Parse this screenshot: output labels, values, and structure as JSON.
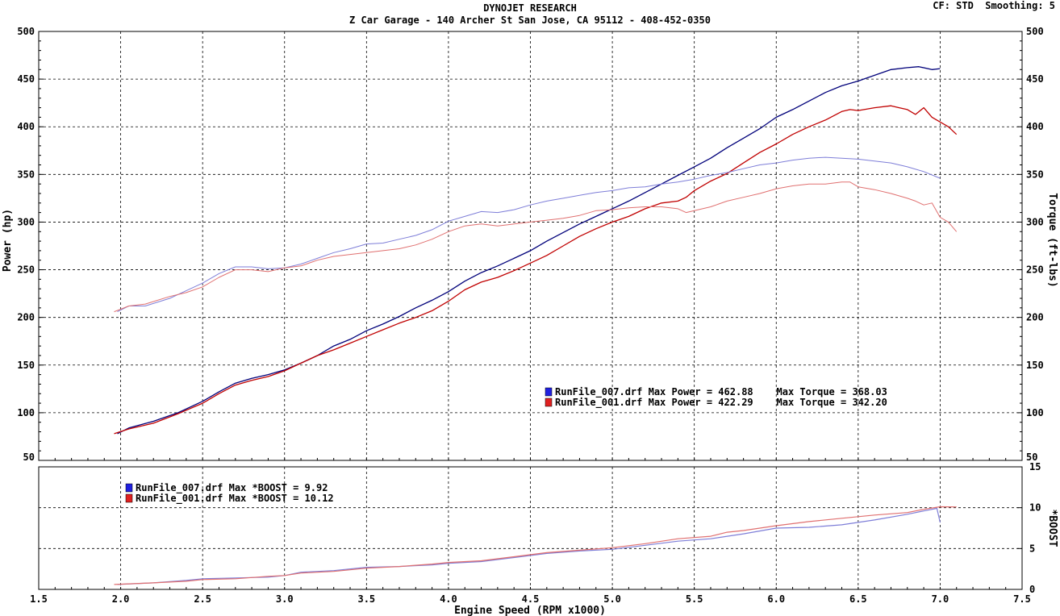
{
  "header": {
    "title": "DYNOJET RESEARCH",
    "subtitle": "Z Car Garage - 140 Archer St San Jose, CA 95112 - 408-452-0350",
    "settings": "CF: STD  Smoothing: 5"
  },
  "chart_data": [
    {
      "type": "line",
      "name": "power-torque-panel",
      "xlabel": "",
      "ylabel": "Power (hp)",
      "y2label": "Torque (ft-lbs)",
      "xlim": [
        1.5,
        7.5
      ],
      "ylim": [
        50,
        500
      ],
      "y2lim": [
        50,
        500
      ],
      "grid": true,
      "yticks": [
        "50",
        "100",
        "150",
        "200",
        "250",
        "300",
        "350",
        "400",
        "450",
        "500"
      ],
      "series": [
        {
          "key": "run007_power",
          "axis": "left",
          "color": "#00007a",
          "width": 1.3,
          "x": [
            1.98,
            2.05,
            2.2,
            2.35,
            2.5,
            2.6,
            2.7,
            2.8,
            2.9,
            3.0,
            3.1,
            3.2,
            3.3,
            3.4,
            3.5,
            3.6,
            3.7,
            3.8,
            3.9,
            4.0,
            4.1,
            4.2,
            4.3,
            4.4,
            4.5,
            4.6,
            4.7,
            4.8,
            4.9,
            5.0,
            5.1,
            5.2,
            5.3,
            5.4,
            5.5,
            5.6,
            5.7,
            5.8,
            5.9,
            6.0,
            6.1,
            6.2,
            6.3,
            6.4,
            6.5,
            6.6,
            6.7,
            6.8,
            6.87,
            6.95,
            7.0
          ],
          "y": [
            78,
            84,
            91,
            100,
            112,
            122,
            131,
            136,
            140,
            145,
            152,
            160,
            170,
            177,
            186,
            193,
            201,
            210,
            218,
            227,
            238,
            247,
            254,
            262,
            270,
            280,
            289,
            298,
            306,
            314,
            322,
            331,
            340,
            349,
            358,
            367,
            378,
            388,
            398,
            410,
            418,
            427,
            436,
            443,
            448,
            454,
            460,
            462,
            463,
            460,
            461
          ]
        },
        {
          "key": "run001_power",
          "axis": "left",
          "color": "#c00000",
          "width": 1.3,
          "x": [
            1.96,
            2.05,
            2.2,
            2.35,
            2.5,
            2.6,
            2.7,
            2.8,
            2.9,
            3.0,
            3.1,
            3.2,
            3.3,
            3.4,
            3.5,
            3.6,
            3.7,
            3.8,
            3.9,
            4.0,
            4.1,
            4.2,
            4.3,
            4.4,
            4.5,
            4.6,
            4.7,
            4.8,
            4.9,
            5.0,
            5.1,
            5.2,
            5.3,
            5.4,
            5.45,
            5.5,
            5.6,
            5.7,
            5.8,
            5.9,
            6.0,
            6.1,
            6.2,
            6.3,
            6.4,
            6.45,
            6.5,
            6.6,
            6.7,
            6.75,
            6.8,
            6.85,
            6.9,
            6.95,
            7.0,
            7.05,
            7.1
          ],
          "y": [
            78,
            83,
            89,
            99,
            110,
            120,
            129,
            134,
            138,
            144,
            152,
            160,
            166,
            173,
            180,
            187,
            194,
            200,
            207,
            217,
            229,
            237,
            242,
            249,
            257,
            265,
            275,
            285,
            293,
            300,
            306,
            314,
            320,
            322,
            326,
            333,
            343,
            351,
            362,
            373,
            382,
            392,
            400,
            407,
            416,
            418,
            417,
            420,
            422,
            420,
            418,
            413,
            420,
            410,
            405,
            400,
            392
          ]
        },
        {
          "key": "run007_torque",
          "axis": "right",
          "color": "#7e7ed8",
          "width": 1,
          "x": [
            1.98,
            2.05,
            2.15,
            2.3,
            2.4,
            2.5,
            2.6,
            2.7,
            2.8,
            2.9,
            3.0,
            3.1,
            3.2,
            3.3,
            3.4,
            3.5,
            3.6,
            3.7,
            3.8,
            3.9,
            4.0,
            4.1,
            4.2,
            4.3,
            4.4,
            4.5,
            4.6,
            4.7,
            4.8,
            4.9,
            5.0,
            5.1,
            5.2,
            5.3,
            5.4,
            5.5,
            5.6,
            5.7,
            5.8,
            5.9,
            6.0,
            6.1,
            6.2,
            6.3,
            6.4,
            6.5,
            6.6,
            6.7,
            6.8,
            6.9,
            7.0
          ],
          "y": [
            206,
            212,
            212,
            220,
            228,
            236,
            246,
            253,
            253,
            251,
            252,
            256,
            262,
            268,
            272,
            277,
            278,
            282,
            286,
            292,
            301,
            306,
            311,
            310,
            313,
            318,
            322,
            325,
            328,
            331,
            333,
            336,
            337,
            340,
            342,
            345,
            349,
            352,
            356,
            360,
            362,
            365,
            367,
            368,
            367,
            366,
            364,
            362,
            358,
            353,
            346
          ]
        },
        {
          "key": "run001_torque",
          "axis": "right",
          "color": "#e07070",
          "width": 1,
          "x": [
            1.96,
            2.05,
            2.15,
            2.3,
            2.4,
            2.5,
            2.6,
            2.7,
            2.8,
            2.9,
            3.0,
            3.1,
            3.2,
            3.3,
            3.4,
            3.5,
            3.6,
            3.7,
            3.8,
            3.9,
            4.0,
            4.1,
            4.2,
            4.3,
            4.4,
            4.5,
            4.6,
            4.7,
            4.8,
            4.9,
            5.0,
            5.1,
            5.2,
            5.3,
            5.4,
            5.45,
            5.5,
            5.6,
            5.7,
            5.8,
            5.9,
            6.0,
            6.1,
            6.2,
            6.3,
            6.4,
            6.45,
            6.5,
            6.6,
            6.7,
            6.8,
            6.85,
            6.9,
            6.95,
            7.0,
            7.05,
            7.1
          ],
          "y": [
            206,
            212,
            214,
            222,
            226,
            232,
            242,
            250,
            250,
            248,
            252,
            254,
            260,
            264,
            266,
            268,
            270,
            272,
            276,
            282,
            290,
            296,
            298,
            296,
            298,
            300,
            302,
            304,
            307,
            312,
            313,
            315,
            316,
            316,
            314,
            310,
            312,
            316,
            322,
            326,
            330,
            335,
            338,
            340,
            340,
            342,
            342,
            337,
            334,
            330,
            325,
            322,
            318,
            320,
            305,
            300,
            290
          ]
        }
      ],
      "legend": {
        "placement": "center-right",
        "entries": [
          {
            "color": "#2020e0",
            "text": "RunFile_007.drf Max Power = 462.88    Max Torque = 368.03"
          },
          {
            "color": "#e02020",
            "text": "RunFile_001.drf Max Power = 422.29    Max Torque = 342.20"
          }
        ]
      }
    },
    {
      "type": "line",
      "name": "boost-panel",
      "xlabel": "Engine Speed (RPM x1000)",
      "ylabel": "",
      "y2label": "*BOOST",
      "xlim": [
        1.5,
        7.5
      ],
      "ylim": [
        0,
        15
      ],
      "grid": true,
      "xticks": [
        "1.5",
        "2.0",
        "2.5",
        "3.0",
        "3.5",
        "4.0",
        "4.5",
        "5.0",
        "5.5",
        "6.0",
        "6.5",
        "7.0",
        "7.5"
      ],
      "yticks": [
        "0",
        "5",
        "10",
        "15"
      ],
      "series": [
        {
          "key": "run007_boost",
          "color": "#7e7ed8",
          "width": 1.2,
          "x": [
            1.98,
            2.2,
            2.4,
            2.5,
            2.7,
            2.9,
            3.0,
            3.1,
            3.3,
            3.5,
            3.7,
            3.9,
            4.0,
            4.2,
            4.4,
            4.6,
            4.8,
            5.0,
            5.2,
            5.4,
            5.6,
            5.8,
            6.0,
            6.2,
            6.4,
            6.6,
            6.8,
            6.9,
            6.98,
            7.0
          ],
          "y": [
            0.6,
            0.8,
            1.1,
            1.3,
            1.4,
            1.5,
            1.7,
            2.1,
            2.3,
            2.7,
            2.8,
            3.0,
            3.2,
            3.4,
            3.9,
            4.4,
            4.7,
            4.9,
            5.4,
            5.9,
            6.2,
            6.8,
            7.5,
            7.6,
            7.9,
            8.5,
            9.2,
            9.6,
            9.92,
            8.2
          ]
        },
        {
          "key": "run001_boost",
          "color": "#e07070",
          "width": 1.2,
          "x": [
            1.96,
            2.2,
            2.4,
            2.5,
            2.7,
            2.9,
            3.0,
            3.1,
            3.3,
            3.5,
            3.7,
            3.9,
            4.0,
            4.2,
            4.4,
            4.6,
            4.8,
            5.0,
            5.2,
            5.4,
            5.6,
            5.7,
            5.8,
            6.0,
            6.2,
            6.4,
            6.6,
            6.8,
            6.9,
            7.0,
            7.1
          ],
          "y": [
            0.6,
            0.8,
            1.0,
            1.2,
            1.3,
            1.6,
            1.7,
            2.0,
            2.2,
            2.6,
            2.8,
            3.1,
            3.3,
            3.5,
            4.0,
            4.5,
            4.8,
            5.1,
            5.6,
            6.2,
            6.5,
            7.0,
            7.2,
            7.8,
            8.3,
            8.7,
            9.1,
            9.4,
            9.8,
            10.12,
            10.1
          ]
        }
      ],
      "legend": {
        "placement": "top-left",
        "entries": [
          {
            "color": "#2020e0",
            "text": "RunFile_007.drf Max *BOOST = 9.92"
          },
          {
            "color": "#e02020",
            "text": "RunFile_001.drf Max *BOOST = 10.12"
          }
        ]
      }
    }
  ]
}
